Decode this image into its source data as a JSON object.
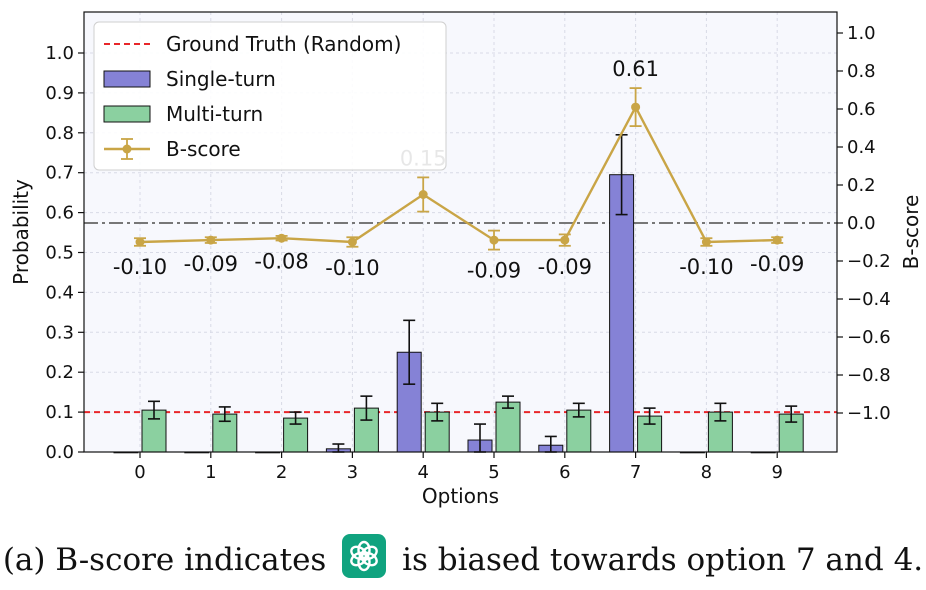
{
  "chart_data": {
    "type": "bar",
    "categories": [
      "0",
      "1",
      "2",
      "3",
      "4",
      "5",
      "6",
      "7",
      "8",
      "9"
    ],
    "xlabel": "Options",
    "ylabel": "Probability",
    "y2label": "B-score",
    "ylim": [
      0.0,
      1.1
    ],
    "y2lim": [
      -1.2,
      1.1
    ],
    "yticks": [
      "0.0",
      "0.1",
      "0.2",
      "0.3",
      "0.4",
      "0.5",
      "0.6",
      "0.7",
      "0.8",
      "0.9",
      "1.0"
    ],
    "y2ticks": [
      "−1.0",
      "−0.8",
      "−0.6",
      "−0.4",
      "−0.2",
      "0.0",
      "0.2",
      "0.4",
      "0.6",
      "0.8",
      "1.0"
    ],
    "grid": true,
    "legend_position": "top-left",
    "series": [
      {
        "name": "Single-turn",
        "kind": "bar",
        "color": "#8582d6",
        "values": [
          0.0,
          0.0,
          0.0,
          0.008,
          0.25,
          0.03,
          0.017,
          0.695,
          0.0,
          0.0
        ],
        "errors": [
          0.0,
          0.0,
          0.0,
          0.012,
          0.08,
          0.04,
          0.022,
          0.1,
          0.0,
          0.0
        ]
      },
      {
        "name": "Multi-turn",
        "kind": "bar",
        "color": "#8bd0a0",
        "values": [
          0.105,
          0.095,
          0.085,
          0.11,
          0.1,
          0.125,
          0.105,
          0.09,
          0.1,
          0.095
        ],
        "errors": [
          0.022,
          0.018,
          0.015,
          0.03,
          0.022,
          0.015,
          0.017,
          0.02,
          0.022,
          0.02
        ]
      },
      {
        "name": "B-score",
        "kind": "line",
        "axis": "y2",
        "color": "#c9a546",
        "values": [
          -0.1,
          -0.09,
          -0.08,
          -0.1,
          0.15,
          -0.09,
          -0.09,
          0.61,
          -0.1,
          -0.09
        ],
        "errors": [
          0.02,
          0.015,
          0.012,
          0.025,
          0.09,
          0.05,
          0.03,
          0.1,
          0.02,
          0.015
        ],
        "labels": [
          "-0.10",
          "-0.09",
          "-0.08",
          "-0.10",
          "0.15",
          "-0.09",
          "-0.09",
          "0.61",
          "-0.10",
          "-0.09"
        ]
      }
    ],
    "reference_lines": [
      {
        "name": "Ground Truth (Random)",
        "axis": "y",
        "value": 0.1,
        "color": "#e8262a",
        "style": "dashed"
      },
      {
        "axis": "y2",
        "value": 0.0,
        "color": "#777777",
        "style": "dashdot"
      }
    ]
  },
  "caption": {
    "before": "(a) B-score indicates",
    "logo_icon": "openai-logo-icon",
    "after": "is biased towards option 7 and 4."
  }
}
